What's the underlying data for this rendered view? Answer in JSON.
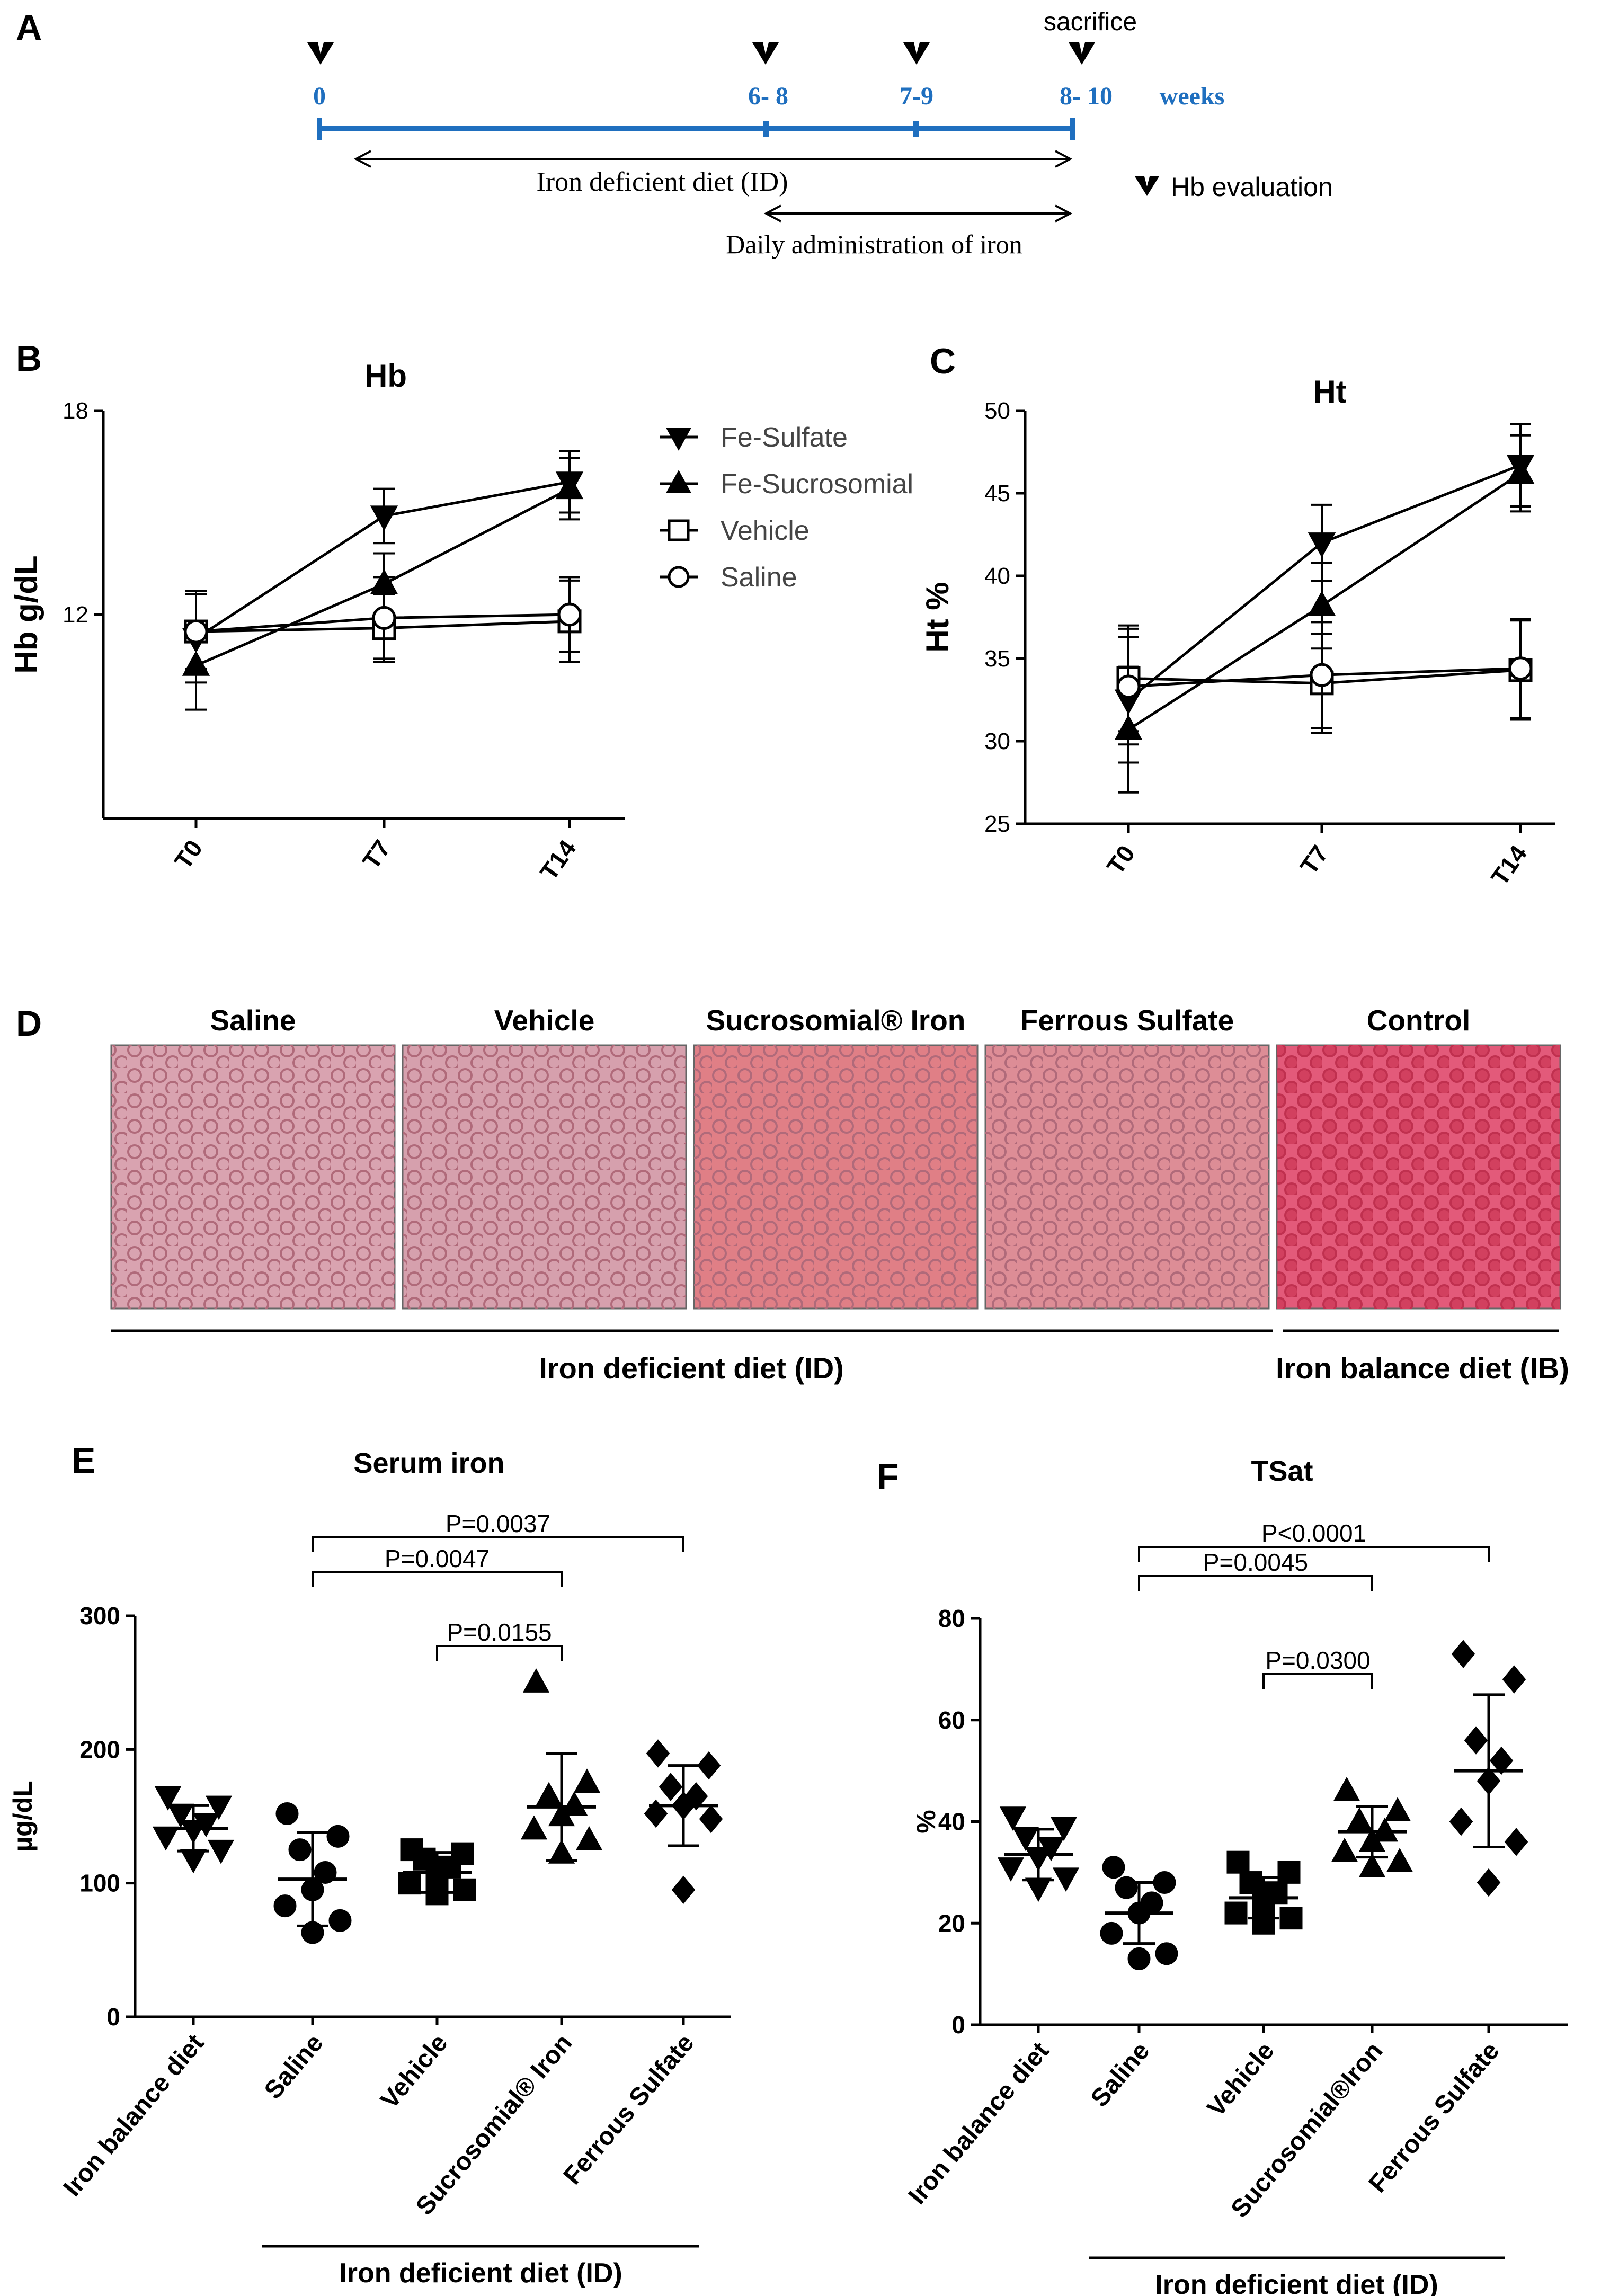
{
  "panel_letters": {
    "a": "A",
    "b": "B",
    "c": "C",
    "d": "D",
    "e": "E",
    "f": "F"
  },
  "colors": {
    "timeline": "#1f6fbf",
    "ink": "#000000"
  },
  "timeline": {
    "sacrifice_label": "sacrifice",
    "ticks": [
      "0",
      "6- 8",
      "7-9",
      "8- 10"
    ],
    "unit_label": "weeks",
    "id_diet_label": "Iron deficient diet (ID)",
    "admin_label": "Daily administration of iron",
    "hb_legend_label": "Hb evaluation"
  },
  "micrographs": {
    "labels": [
      "Saline",
      "Vehicle",
      "Sucrosomial® Iron",
      "Ferrous Sulfate",
      "Control"
    ],
    "tints": [
      "#d9a3b0",
      "#d6a0ad",
      "#e07f86",
      "#dd8d96",
      "#e35a7a"
    ],
    "id_label": "Iron deficient diet (ID)",
    "ib_label": "Iron balance diet (IB)"
  },
  "chart_data": [
    {
      "id": "B",
      "type": "line",
      "title": "Hb",
      "xlabel": "",
      "ylabel": "Hb g/dL",
      "categories": [
        "T0",
        "T7",
        "T14"
      ],
      "ylim": [
        6,
        18
      ],
      "yticks": [
        "18",
        "12"
      ],
      "series": [
        {
          "name": "Fe-Sulfate",
          "marker": "triangle-down",
          "values": [
            11.3,
            14.9,
            15.9
          ],
          "errors": [
            1.3,
            0.8,
            0.9
          ]
        },
        {
          "name": "Fe-Sucrosomial",
          "marker": "triangle-up",
          "values": [
            10.5,
            12.9,
            15.7
          ],
          "errors": [
            1.3,
            0.9,
            0.9
          ]
        },
        {
          "name": "Vehicle",
          "marker": "square",
          "values": [
            11.5,
            11.6,
            11.8
          ],
          "errors": [
            1.1,
            1.0,
            1.2
          ]
        },
        {
          "name": "Saline",
          "marker": "circle",
          "values": [
            11.5,
            11.9,
            12.0
          ],
          "errors": [
            1.2,
            1.2,
            1.1
          ]
        }
      ]
    },
    {
      "id": "C",
      "type": "line",
      "title": "Ht",
      "xlabel": "",
      "ylabel": "Ht %",
      "categories": [
        "T0",
        "T7",
        "T14"
      ],
      "ylim": [
        25,
        50
      ],
      "yticks": [
        "50",
        "45",
        "40",
        "35",
        "30",
        "25"
      ],
      "series": [
        {
          "name": "Fe-Sulfate",
          "marker": "triangle-down",
          "values": [
            32.5,
            42.0,
            46.7
          ],
          "errors": [
            3.8,
            2.3,
            2.5
          ]
        },
        {
          "name": "Fe-Sucrosomial",
          "marker": "triangle-up",
          "values": [
            30.7,
            38.2,
            46.2
          ],
          "errors": [
            3.8,
            2.6,
            2.3
          ]
        },
        {
          "name": "Vehicle",
          "marker": "square",
          "values": [
            33.8,
            33.5,
            34.3
          ],
          "errors": [
            3.2,
            3.0,
            3.0
          ]
        },
        {
          "name": "Saline",
          "marker": "circle",
          "values": [
            33.3,
            34.0,
            34.4
          ],
          "errors": [
            3.5,
            3.2,
            3.0
          ]
        }
      ]
    },
    {
      "id": "E",
      "type": "scatter",
      "title": "Serum iron",
      "xlabel": "Iron deficient diet (ID)",
      "ylabel": "µg/dL",
      "categories": [
        "Iron balance diet",
        "Saline",
        "Vehicle",
        "Sucrosomial® Iron",
        "Ferrous Sulfate"
      ],
      "ylim": [
        0,
        300
      ],
      "yticks": [
        "300",
        "200",
        "100",
        "0"
      ],
      "groups": [
        {
          "name": "Iron balance diet",
          "marker": "triangle-down",
          "mean": 141,
          "sd": 17,
          "points": [
            165,
            158,
            152,
            145,
            140,
            135,
            125,
            118
          ]
        },
        {
          "name": "Saline",
          "marker": "circle",
          "mean": 103,
          "sd": 35,
          "points": [
            152,
            135,
            125,
            108,
            95,
            83,
            72,
            63
          ]
        },
        {
          "name": "Vehicle",
          "marker": "square",
          "mean": 108,
          "sd": 15,
          "points": [
            125,
            122,
            118,
            112,
            105,
            100,
            95,
            92
          ]
        },
        {
          "name": "Sucrosomial® Iron",
          "marker": "triangle-up",
          "mean": 157,
          "sd": 40,
          "points": [
            250,
            175,
            165,
            158,
            150,
            140,
            132,
            122
          ]
        },
        {
          "name": "Ferrous Sulfate",
          "marker": "diamond",
          "mean": 158,
          "sd": 30,
          "points": [
            197,
            188,
            172,
            165,
            158,
            152,
            148,
            95
          ]
        }
      ],
      "comparisons": [
        {
          "from": "Saline",
          "to": "Ferrous Sulfate",
          "label": "P=0.0037"
        },
        {
          "from": "Saline",
          "to": "Sucrosomial® Iron",
          "label": "P=0.0047"
        },
        {
          "from": "Vehicle",
          "to": "Sucrosomial® Iron",
          "label": "P=0.0155"
        }
      ]
    },
    {
      "id": "F",
      "type": "scatter",
      "title": "TSat",
      "xlabel": "Iron deficient diet (ID)",
      "ylabel": "%",
      "categories": [
        "Iron balance diet",
        "Saline",
        "Vehicle",
        "Sucrosomial®Iron",
        "Ferrous Sulfate"
      ],
      "ylim": [
        0,
        80
      ],
      "yticks": [
        "80",
        "60",
        "40",
        "20",
        "0"
      ],
      "groups": [
        {
          "name": "Iron balance diet",
          "marker": "triangle-down",
          "mean": 33.5,
          "sd": 5,
          "points": [
            41,
            39,
            37,
            35,
            33,
            31,
            29,
            27
          ]
        },
        {
          "name": "Saline",
          "marker": "circle",
          "mean": 22,
          "sd": 6,
          "points": [
            31,
            28,
            27,
            24,
            22,
            18,
            14,
            13
          ]
        },
        {
          "name": "Vehicle",
          "marker": "square",
          "mean": 25,
          "sd": 4,
          "points": [
            32,
            30,
            28,
            26,
            24,
            22,
            21,
            20
          ]
        },
        {
          "name": "Sucrosomial®Iron",
          "marker": "triangle-up",
          "mean": 38,
          "sd": 5,
          "points": [
            46,
            42,
            40,
            38,
            36,
            34,
            32,
            31
          ]
        },
        {
          "name": "Ferrous Sulfate",
          "marker": "diamond",
          "mean": 50,
          "sd": 15,
          "points": [
            73,
            68,
            56,
            52,
            48,
            40,
            36,
            28
          ]
        }
      ],
      "comparisons": [
        {
          "from": "Saline",
          "to": "Ferrous Sulfate",
          "label": "P<0.0001"
        },
        {
          "from": "Saline",
          "to": "Sucrosomial®Iron",
          "label": "P=0.0045"
        },
        {
          "from": "Vehicle",
          "to": "Sucrosomial®Iron",
          "label": "P=0.0300"
        }
      ]
    }
  ]
}
